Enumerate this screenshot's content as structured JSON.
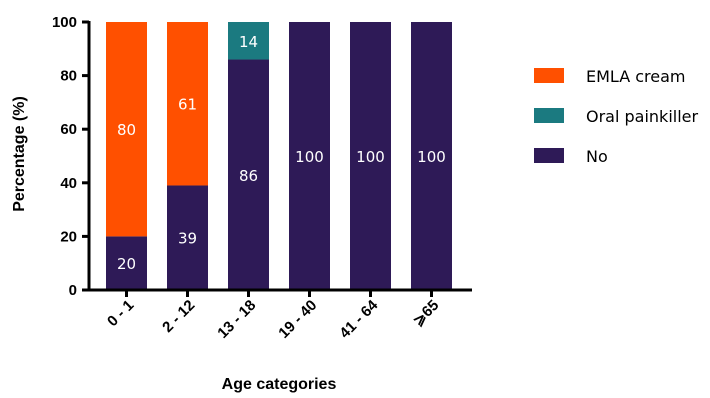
{
  "chart_data": {
    "type": "bar",
    "stacked": true,
    "categories": [
      "0 - 1",
      "2 - 12",
      "13 - 18",
      "19 - 40",
      "41 - 64",
      "⩾65"
    ],
    "series": [
      {
        "name": "No",
        "color": "#2e1a57",
        "values": [
          20,
          39,
          86,
          100,
          100,
          100
        ]
      },
      {
        "name": "Oral painkiller",
        "color": "#1b7a80",
        "values": [
          0,
          0,
          14,
          0,
          0,
          0
        ]
      },
      {
        "name": "EMLA cream",
        "color": "#ff5000",
        "values": [
          80,
          61,
          0,
          0,
          0,
          0
        ]
      }
    ],
    "legend_order": [
      "EMLA cream",
      "Oral painkiller",
      "No"
    ],
    "legend_position": "right",
    "xlabel": "Age categories",
    "ylabel": "Percentage  (%)",
    "ylim": [
      0,
      100
    ],
    "yticks": [
      0,
      20,
      40,
      60,
      80,
      100
    ],
    "grid": false
  }
}
